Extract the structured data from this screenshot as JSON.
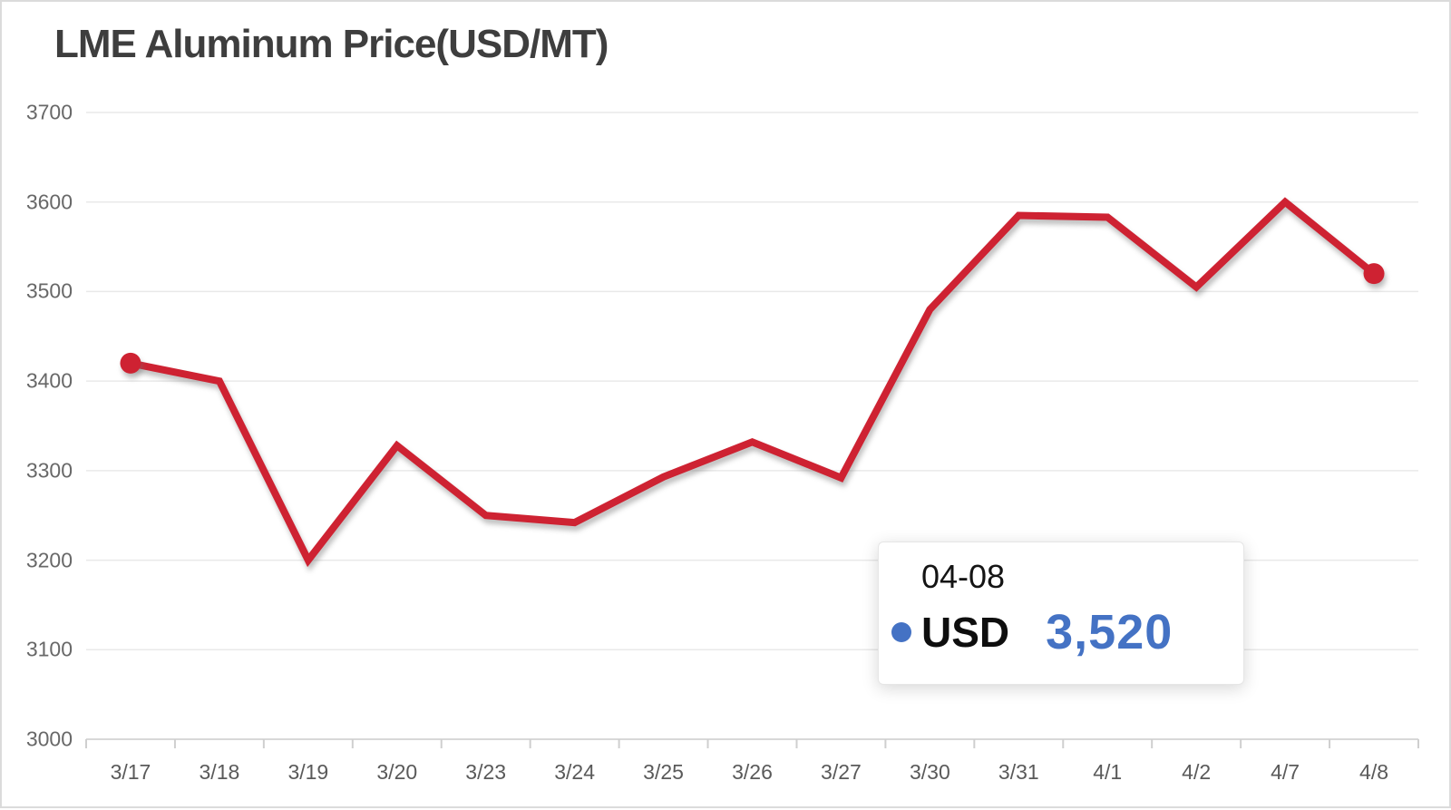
{
  "page": {
    "background": "#FFFFFF",
    "border_color": "#DBDBDB"
  },
  "chart": {
    "title": "LME Aluminum Price(USD/MT)",
    "title_color": "#3E3E3E",
    "line_color": "#CE2232",
    "grid_color": "#E9E9E9",
    "axis_line_color": "#D8D8D8",
    "tick_color": "#CFCFCF",
    "y_label_color": "#686868",
    "x_label_color": "#5A5A5A"
  },
  "chart_data": {
    "type": "line",
    "title": "LME Aluminum Price(USD/MT)",
    "categories": [
      "3/17",
      "3/18",
      "3/19",
      "3/20",
      "3/23",
      "3/24",
      "3/25",
      "3/26",
      "3/27",
      "3/30",
      "3/31",
      "4/1",
      "4/2",
      "4/7",
      "4/8"
    ],
    "series": [
      {
        "name": "USD",
        "values": [
          3420,
          3400,
          3200,
          3328,
          3250,
          3242,
          3293,
          3332,
          3292,
          3480,
          3585,
          3583,
          3505,
          3600,
          3520
        ]
      }
    ],
    "ylim": [
      3000,
      3700
    ],
    "y_ticks": [
      3000,
      3100,
      3200,
      3300,
      3400,
      3500,
      3600,
      3700
    ],
    "grid": true,
    "legend_position": "none",
    "markers": "endpoints-only",
    "annotations": [
      {
        "kind": "tooltip",
        "x": "4/8",
        "label": "04-08",
        "series": "USD",
        "value": 3520
      }
    ]
  },
  "tooltip": {
    "date": "04-08",
    "series_label": "USD",
    "value": "3,520",
    "accent_color": "#4472C4",
    "text_color": "#141414"
  }
}
